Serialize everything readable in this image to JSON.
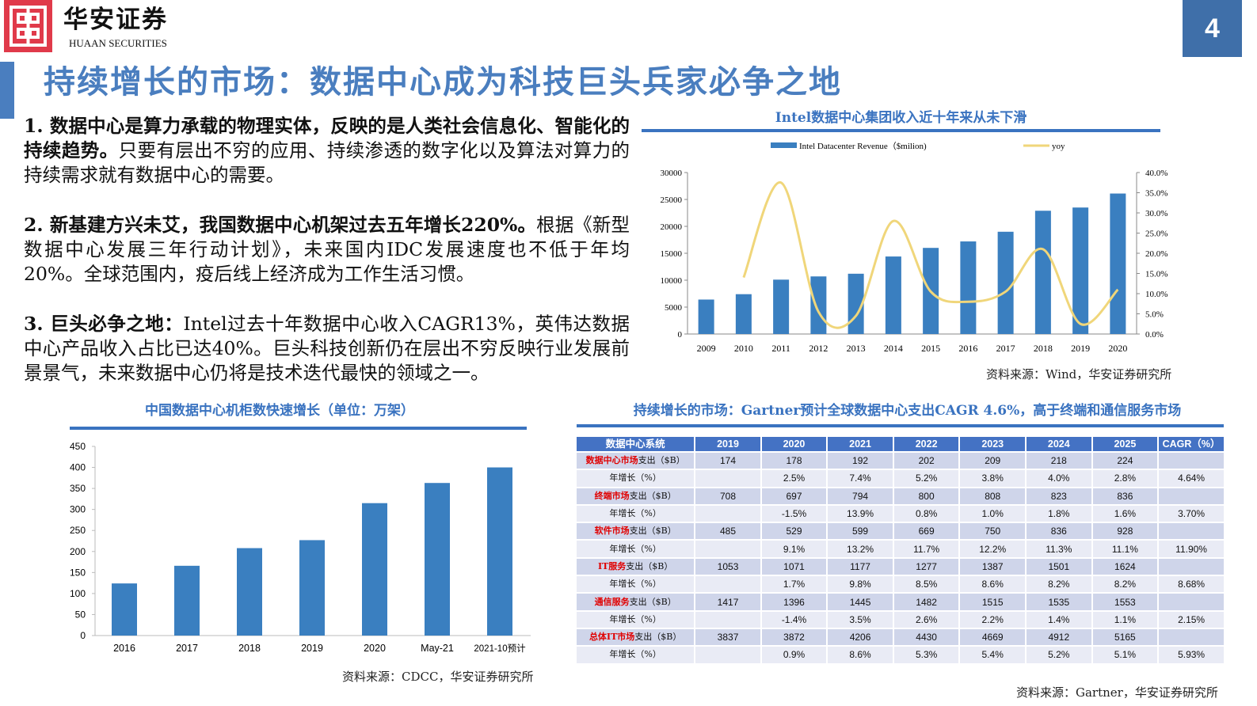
{
  "header": {
    "brand_cn": "华安证券",
    "brand_en": "HUAAN SECURITIES",
    "page_number": "4",
    "title": "持续增长的市场：数据中心成为科技巨头兵家必争之地"
  },
  "paragraphs": [
    {
      "bold": "1. 数据中心是算力承载的物理实体，反映的是人类社会信息化、智能化的持续趋势。",
      "normal": "只要有层出不穷的应用、持续渗透的数字化以及算法对算力的持续需求就有数据中心的需要。"
    },
    {
      "bold": "2. 新基建方兴未艾，我国数据中心机架过去五年增长220%。",
      "normal": "根据《新型数据中心发展三年行动计划》，未来国内IDC发展速度也不低于年均20%。全球范围内，疫后线上经济成为工作生活习惯。"
    },
    {
      "bold": "3. 巨头必争之地：",
      "normal": "Intel过去十年数据中心收入CAGR13%，英伟达数据中心产品收入占比已达40%。巨头科技创新仍在层出不穷反映行业发展前景景气，未来数据中心仍将是技术迭代最快的领域之一。"
    }
  ],
  "chart_data": [
    {
      "type": "bar+line",
      "title": "Intel数据中心集团收入近十年来从未下滑",
      "categories": [
        "2009",
        "2010",
        "2011",
        "2012",
        "2013",
        "2014",
        "2015",
        "2016",
        "2017",
        "2018",
        "2019",
        "2020"
      ],
      "series": [
        {
          "name": "Intel Datacenter Revenue（$milion)",
          "type": "bar",
          "axis": "left",
          "color": "#3a7fc0",
          "values": [
            6400,
            7400,
            10100,
            10700,
            11200,
            14400,
            16000,
            17200,
            19000,
            22900,
            23500,
            26100
          ]
        },
        {
          "name": "yoy",
          "type": "line",
          "axis": "right",
          "color": "#f0d67a",
          "values": [
            null,
            14.0,
            37.5,
            5.5,
            4.5,
            28.0,
            10.5,
            8.0,
            10.5,
            21.0,
            2.5,
            11.0
          ]
        }
      ],
      "ylim": [
        0,
        30000
      ],
      "yticks": [
        "30000",
        "25000",
        "20000",
        "15000",
        "10000",
        "5000",
        "0"
      ],
      "y2lim": [
        0,
        40
      ],
      "y2ticks": [
        "40.0%",
        "35.0%",
        "30.0%",
        "25.0%",
        "20.0%",
        "15.0%",
        "10.0%",
        "5.0%",
        "0.0%"
      ],
      "legend": "top",
      "grid": false,
      "source": "资料来源：Wind，华安证券研究所"
    },
    {
      "type": "bar",
      "title": "中国数据中心机柜数快速增长（单位：万架）",
      "categories": [
        "2016",
        "2017",
        "2018",
        "2019",
        "2020",
        "May-21",
        "2021-10预计"
      ],
      "values": [
        124,
        166,
        208,
        227,
        315,
        363,
        400
      ],
      "color": "#3a7fc0",
      "ylim": [
        0,
        450
      ],
      "yticks": [
        "450",
        "400",
        "350",
        "300",
        "250",
        "200",
        "150",
        "100",
        "50",
        "0"
      ],
      "grid": false,
      "source": "资料来源：CDCC，华安证券研究所"
    }
  ],
  "table": {
    "title": "持续增长的市场：Gartner预计全球数据中心支出CAGR 4.6%，高于终端和通信服务市场",
    "headers": [
      "数据中心系统",
      "2019",
      "2020",
      "2021",
      "2022",
      "2023",
      "2024",
      "2025",
      "CAGR（%）"
    ],
    "rows": [
      {
        "hl": "数据中心市场",
        "rest": "支出（$B）",
        "cells": [
          "174",
          "178",
          "192",
          "202",
          "209",
          "218",
          "224",
          ""
        ]
      },
      {
        "hl": "",
        "rest": "年增长（%）",
        "cells": [
          "",
          "2.5%",
          "7.4%",
          "5.2%",
          "3.8%",
          "4.0%",
          "2.8%",
          "4.64%"
        ]
      },
      {
        "hl": "终端市场",
        "rest": "支出（$B）",
        "cells": [
          "708",
          "697",
          "794",
          "800",
          "808",
          "823",
          "836",
          ""
        ]
      },
      {
        "hl": "",
        "rest": "年增长（%）",
        "cells": [
          "",
          "-1.5%",
          "13.9%",
          "0.8%",
          "1.0%",
          "1.8%",
          "1.6%",
          "3.70%"
        ]
      },
      {
        "hl": "软件市场",
        "rest": "支出（$B）",
        "cells": [
          "485",
          "529",
          "599",
          "669",
          "750",
          "836",
          "928",
          ""
        ]
      },
      {
        "hl": "",
        "rest": "年增长（%）",
        "cells": [
          "",
          "9.1%",
          "13.2%",
          "11.7%",
          "12.2%",
          "11.3%",
          "11.1%",
          "11.90%"
        ]
      },
      {
        "hl": "IT服务",
        "rest": "支出（$B）",
        "cells": [
          "1053",
          "1071",
          "1177",
          "1277",
          "1387",
          "1501",
          "1624",
          ""
        ]
      },
      {
        "hl": "",
        "rest": "年增长（%）",
        "cells": [
          "",
          "1.7%",
          "9.8%",
          "8.5%",
          "8.6%",
          "8.2%",
          "8.2%",
          "8.68%"
        ]
      },
      {
        "hl": "通信服务",
        "rest": "支出（$B）",
        "cells": [
          "1417",
          "1396",
          "1445",
          "1482",
          "1515",
          "1535",
          "1553",
          ""
        ]
      },
      {
        "hl": "",
        "rest": "年增长（%）",
        "cells": [
          "",
          "-1.4%",
          "3.5%",
          "2.6%",
          "2.2%",
          "1.4%",
          "1.1%",
          "2.15%"
        ]
      },
      {
        "hl": "总体IT市场",
        "rest": "支出（$B）",
        "cells": [
          "3837",
          "3872",
          "4206",
          "4430",
          "4669",
          "4912",
          "5165",
          ""
        ]
      },
      {
        "hl": "",
        "rest": "年增长（%）",
        "cells": [
          "",
          "0.9%",
          "8.6%",
          "5.3%",
          "5.4%",
          "5.2%",
          "5.1%",
          "5.93%"
        ]
      }
    ],
    "source": "资料来源：Gartner，华安证券研究所"
  }
}
